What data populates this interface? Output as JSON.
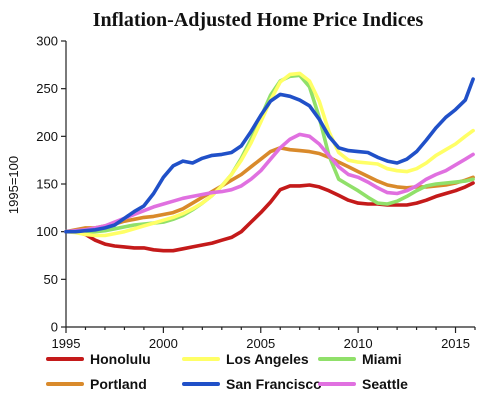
{
  "chart_data": {
    "type": "line",
    "title": "Inflation-Adjusted Home Price Indices",
    "xlabel": "",
    "ylabel": "1995=100",
    "xlim": [
      1995,
      2016
    ],
    "ylim": [
      0,
      300
    ],
    "xticks": [
      1995,
      2000,
      2005,
      2010,
      2015
    ],
    "yticks": [
      0,
      50,
      100,
      150,
      200,
      250,
      300
    ],
    "grid": false,
    "legend_position": "bottom",
    "series": [
      {
        "name": "Honolulu",
        "color": "#c41a1a",
        "x": [
          1995,
          1995.5,
          1996,
          1996.5,
          1997,
          1997.5,
          1998,
          1998.5,
          1999,
          1999.5,
          2000,
          2000.5,
          2001,
          2001.5,
          2002,
          2002.5,
          2003,
          2003.5,
          2004,
          2004.5,
          2005,
          2005.5,
          2006,
          2006.5,
          2007,
          2007.5,
          2008,
          2008.5,
          2009,
          2009.5,
          2010,
          2010.5,
          2011,
          2011.5,
          2012,
          2012.5,
          2013,
          2013.5,
          2014,
          2014.5,
          2015,
          2015.5,
          2015.9
        ],
        "values": [
          100,
          100,
          97,
          91,
          87,
          85,
          84,
          83,
          83,
          81,
          80,
          80,
          82,
          84,
          86,
          88,
          91,
          94,
          100,
          110,
          120,
          131,
          144,
          148,
          148,
          149,
          147,
          143,
          138,
          133,
          130,
          129,
          129,
          128,
          128,
          128,
          130,
          133,
          137,
          140,
          143,
          147,
          151
        ]
      },
      {
        "name": "Los Angeles",
        "color": "#ffff66",
        "x": [
          1995,
          1995.5,
          1996,
          1996.5,
          1997,
          1997.5,
          1998,
          1998.5,
          1999,
          1999.5,
          2000,
          2000.5,
          2001,
          2001.5,
          2002,
          2002.5,
          2003,
          2003.5,
          2004,
          2004.5,
          2005,
          2005.5,
          2006,
          2006.5,
          2007,
          2007.5,
          2008,
          2008.5,
          2009,
          2009.5,
          2010,
          2010.5,
          2011,
          2011.5,
          2012,
          2012.5,
          2013,
          2013.5,
          2014,
          2014.5,
          2015,
          2015.5,
          2015.9
        ],
        "values": [
          100,
          99,
          97,
          96,
          96,
          98,
          100,
          103,
          106,
          109,
          112,
          115,
          119,
          124,
          130,
          138,
          148,
          160,
          175,
          193,
          215,
          238,
          257,
          265,
          266,
          258,
          237,
          205,
          183,
          175,
          173,
          172,
          171,
          166,
          164,
          163,
          166,
          172,
          180,
          186,
          192,
          200,
          206
        ]
      },
      {
        "name": "Miami",
        "color": "#90e06a",
        "x": [
          1995,
          1995.5,
          1996,
          1996.5,
          1997,
          1997.5,
          1998,
          1998.5,
          1999,
          1999.5,
          2000,
          2000.5,
          2001,
          2001.5,
          2002,
          2002.5,
          2003,
          2003.5,
          2004,
          2004.5,
          2005,
          2005.5,
          2006,
          2006.5,
          2007,
          2007.5,
          2008,
          2008.5,
          2009,
          2009.5,
          2010,
          2010.5,
          2011,
          2011.5,
          2012,
          2012.5,
          2013,
          2013.5,
          2014,
          2014.5,
          2015,
          2015.5,
          2015.9
        ],
        "values": [
          100,
          100,
          100,
          100,
          101,
          103,
          105,
          107,
          108,
          109,
          110,
          113,
          117,
          123,
          130,
          138,
          148,
          160,
          177,
          197,
          220,
          243,
          258,
          263,
          264,
          252,
          220,
          180,
          155,
          149,
          143,
          136,
          130,
          129,
          132,
          137,
          143,
          148,
          150,
          151,
          152,
          153,
          155
        ]
      },
      {
        "name": "Portland",
        "color": "#d98a2b",
        "x": [
          1995,
          1995.5,
          1996,
          1996.5,
          1997,
          1997.5,
          1998,
          1998.5,
          1999,
          1999.5,
          2000,
          2000.5,
          2001,
          2001.5,
          2002,
          2002.5,
          2003,
          2003.5,
          2004,
          2004.5,
          2005,
          2005.5,
          2006,
          2006.5,
          2007,
          2007.5,
          2008,
          2008.5,
          2009,
          2009.5,
          2010,
          2010.5,
          2011,
          2011.5,
          2012,
          2012.5,
          2013,
          2013.5,
          2014,
          2014.5,
          2015,
          2015.5,
          2015.9
        ],
        "values": [
          100,
          102,
          104,
          104,
          106,
          108,
          111,
          113,
          115,
          116,
          118,
          120,
          124,
          130,
          136,
          142,
          148,
          154,
          160,
          168,
          176,
          184,
          188,
          186,
          185,
          184,
          182,
          178,
          173,
          168,
          163,
          158,
          153,
          149,
          147,
          146,
          147,
          147,
          148,
          149,
          151,
          154,
          157
        ]
      },
      {
        "name": "San Francisco",
        "color": "#2050c8",
        "x": [
          1995,
          1995.5,
          1996,
          1996.5,
          1997,
          1997.5,
          1998,
          1998.5,
          1999,
          1999.5,
          2000,
          2000.5,
          2001,
          2001.5,
          2002,
          2002.5,
          2003,
          2003.5,
          2004,
          2004.5,
          2005,
          2005.5,
          2006,
          2006.5,
          2007,
          2007.5,
          2008,
          2008.5,
          2009,
          2009.5,
          2010,
          2010.5,
          2011,
          2011.5,
          2012,
          2012.5,
          2013,
          2013.5,
          2014,
          2014.5,
          2015,
          2015.5,
          2015.9
        ],
        "values": [
          100,
          100,
          101,
          102,
          104,
          107,
          114,
          121,
          127,
          140,
          157,
          169,
          174,
          172,
          177,
          180,
          181,
          183,
          190,
          205,
          222,
          237,
          244,
          242,
          238,
          232,
          218,
          200,
          188,
          185,
          184,
          183,
          178,
          174,
          172,
          176,
          184,
          196,
          209,
          220,
          228,
          238,
          260
        ]
      },
      {
        "name": "Seattle",
        "color": "#e070e0",
        "x": [
          1995,
          1995.5,
          1996,
          1996.5,
          1997,
          1997.5,
          1998,
          1998.5,
          1999,
          1999.5,
          2000,
          2000.5,
          2001,
          2001.5,
          2002,
          2002.5,
          2003,
          2003.5,
          2004,
          2004.5,
          2005,
          2005.5,
          2006,
          2006.5,
          2007,
          2007.5,
          2008,
          2008.5,
          2009,
          2009.5,
          2010,
          2010.5,
          2011,
          2011.5,
          2012,
          2012.5,
          2013,
          2013.5,
          2014,
          2014.5,
          2015,
          2015.5,
          2015.9
        ],
        "values": [
          100,
          101,
          102,
          104,
          106,
          110,
          114,
          118,
          122,
          126,
          129,
          132,
          135,
          137,
          139,
          141,
          142,
          144,
          148,
          155,
          164,
          176,
          188,
          197,
          202,
          200,
          192,
          180,
          168,
          160,
          157,
          152,
          146,
          141,
          140,
          143,
          148,
          155,
          160,
          164,
          170,
          176,
          181
        ]
      }
    ]
  }
}
